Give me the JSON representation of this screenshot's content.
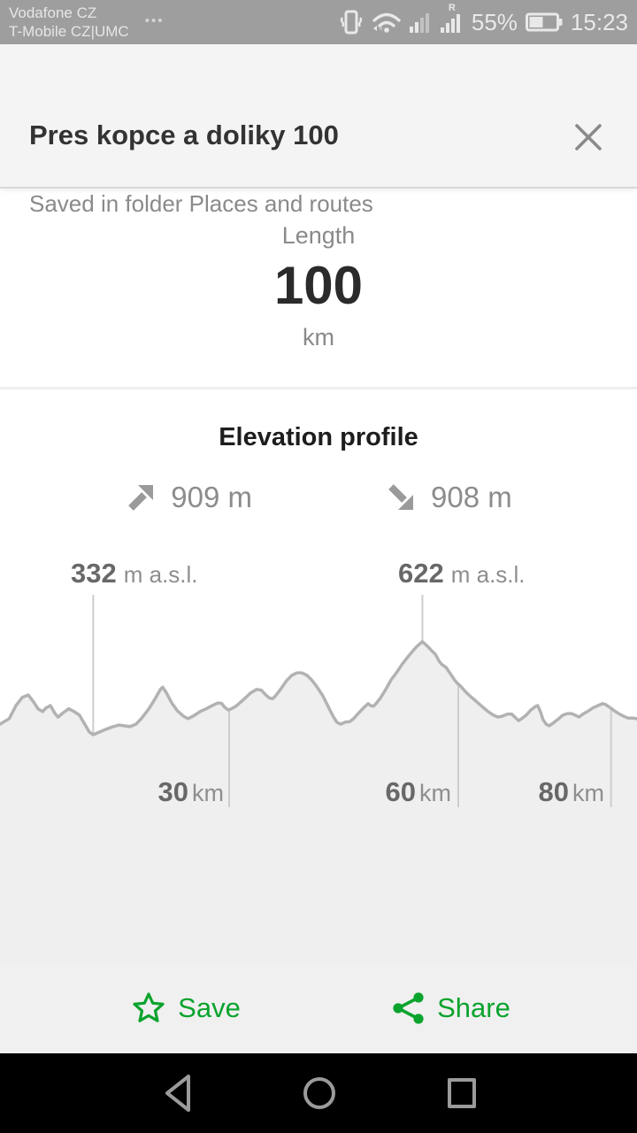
{
  "status_bar": {
    "carrier_line1": "Vodafone CZ",
    "carrier_line2": "T-Mobile CZ|UMC",
    "ellipsis": "•••",
    "roaming_indicator": "R",
    "battery_percent": "55%",
    "time": "15:23"
  },
  "header": {
    "title": "Pres kopce a doliky 100",
    "subtitle": "Saved in folder Places and routes"
  },
  "length": {
    "label": "Length",
    "value": "100",
    "unit": "km"
  },
  "elevation": {
    "title": "Elevation profile",
    "ascent": "909 m",
    "descent": "908 m"
  },
  "chart_data": {
    "type": "area",
    "title": "Elevation profile",
    "xlabel": "km",
    "ylabel": "m a.s.l.",
    "x_unit": "km",
    "elevation_unit": "m a.s.l.",
    "total_length_km": 100,
    "visible_range_km": [
      0,
      83.4
    ],
    "ascent_m": 909,
    "descent_m": 908,
    "min_label": {
      "value": 332,
      "at_km": 12.2
    },
    "peak_label": {
      "value": 622,
      "at_km": 55.3
    },
    "x_ticks_km": [
      30,
      60,
      80
    ],
    "grid": false,
    "legend": false,
    "line_color": "#b2b2b2",
    "fill_color": "#efefef",
    "profile": [
      [
        0,
        365
      ],
      [
        1.2,
        382
      ],
      [
        2.1,
        423
      ],
      [
        2.9,
        448
      ],
      [
        3.7,
        456
      ],
      [
        4.4,
        434
      ],
      [
        5.0,
        412
      ],
      [
        5.6,
        404
      ],
      [
        6.0,
        415
      ],
      [
        6.6,
        423
      ],
      [
        7.2,
        398
      ],
      [
        7.6,
        387
      ],
      [
        8.3,
        401
      ],
      [
        9.0,
        413
      ],
      [
        9.7,
        404
      ],
      [
        10.4,
        393
      ],
      [
        11.1,
        365
      ],
      [
        11.7,
        340
      ],
      [
        12.2,
        332
      ],
      [
        13.0,
        340
      ],
      [
        13.9,
        349
      ],
      [
        14.8,
        357
      ],
      [
        15.6,
        362
      ],
      [
        16.2,
        360
      ],
      [
        17.0,
        357
      ],
      [
        17.8,
        365
      ],
      [
        18.5,
        382
      ],
      [
        19.5,
        413
      ],
      [
        20.3,
        444
      ],
      [
        21.0,
        473
      ],
      [
        21.3,
        480
      ],
      [
        21.8,
        462
      ],
      [
        22.5,
        431
      ],
      [
        23.2,
        407
      ],
      [
        24.0,
        390
      ],
      [
        24.6,
        382
      ],
      [
        25.3,
        390
      ],
      [
        26.2,
        404
      ],
      [
        27.0,
        413
      ],
      [
        27.8,
        423
      ],
      [
        28.5,
        431
      ],
      [
        29.0,
        430
      ],
      [
        29.4,
        418
      ],
      [
        29.9,
        409
      ],
      [
        30.5,
        415
      ],
      [
        31.0,
        423
      ],
      [
        31.9,
        442
      ],
      [
        32.8,
        462
      ],
      [
        33.6,
        473
      ],
      [
        34.2,
        471
      ],
      [
        34.8,
        456
      ],
      [
        35.3,
        446
      ],
      [
        35.7,
        444
      ],
      [
        36.1,
        454
      ],
      [
        36.8,
        476
      ],
      [
        37.5,
        500
      ],
      [
        38.2,
        517
      ],
      [
        38.9,
        525
      ],
      [
        39.5,
        525
      ],
      [
        40.2,
        517
      ],
      [
        40.8,
        503
      ],
      [
        41.5,
        481
      ],
      [
        42.2,
        456
      ],
      [
        42.9,
        423
      ],
      [
        43.6,
        390
      ],
      [
        44.1,
        371
      ],
      [
        44.6,
        365
      ],
      [
        45.2,
        371
      ],
      [
        45.8,
        373
      ],
      [
        46.3,
        382
      ],
      [
        47.0,
        401
      ],
      [
        47.7,
        418
      ],
      [
        48.2,
        429
      ],
      [
        48.5,
        423
      ],
      [
        48.9,
        421
      ],
      [
        49.3,
        431
      ],
      [
        49.8,
        446
      ],
      [
        50.5,
        473
      ],
      [
        51.2,
        503
      ],
      [
        51.9,
        525
      ],
      [
        52.6,
        550
      ],
      [
        53.3,
        572
      ],
      [
        54.0,
        592
      ],
      [
        54.6,
        608
      ],
      [
        55.3,
        622
      ],
      [
        55.6,
        616
      ],
      [
        56.1,
        605
      ],
      [
        56.5,
        594
      ],
      [
        57.0,
        583
      ],
      [
        57.5,
        561
      ],
      [
        57.9,
        550
      ],
      [
        58.4,
        542
      ],
      [
        58.8,
        528
      ],
      [
        59.2,
        514
      ],
      [
        59.5,
        503
      ],
      [
        59.9,
        492
      ],
      [
        60.4,
        481
      ],
      [
        60.9,
        467
      ],
      [
        61.6,
        451
      ],
      [
        62.3,
        437
      ],
      [
        63.1,
        420
      ],
      [
        63.9,
        404
      ],
      [
        64.6,
        393
      ],
      [
        65.2,
        387
      ],
      [
        65.8,
        390
      ],
      [
        66.4,
        396
      ],
      [
        67.0,
        396
      ],
      [
        67.4,
        387
      ],
      [
        67.9,
        376
      ],
      [
        68.3,
        382
      ],
      [
        68.9,
        393
      ],
      [
        69.5,
        409
      ],
      [
        70.1,
        420
      ],
      [
        70.4,
        423
      ],
      [
        70.8,
        401
      ],
      [
        71.1,
        379
      ],
      [
        71.5,
        365
      ],
      [
        71.9,
        360
      ],
      [
        72.4,
        368
      ],
      [
        73.0,
        379
      ],
      [
        73.7,
        393
      ],
      [
        74.3,
        398
      ],
      [
        74.8,
        398
      ],
      [
        75.3,
        393
      ],
      [
        75.8,
        387
      ],
      [
        76.3,
        396
      ],
      [
        76.9,
        404
      ],
      [
        77.6,
        415
      ],
      [
        78.3,
        423
      ],
      [
        78.9,
        429
      ],
      [
        79.3,
        426
      ],
      [
        79.8,
        418
      ],
      [
        80.4,
        407
      ],
      [
        81.0,
        398
      ],
      [
        81.6,
        390
      ],
      [
        82.2,
        384
      ],
      [
        82.8,
        384
      ],
      [
        83.4,
        382
      ]
    ]
  },
  "actions": {
    "save": "Save",
    "share": "Share",
    "accent_color": "#0aa32d"
  }
}
